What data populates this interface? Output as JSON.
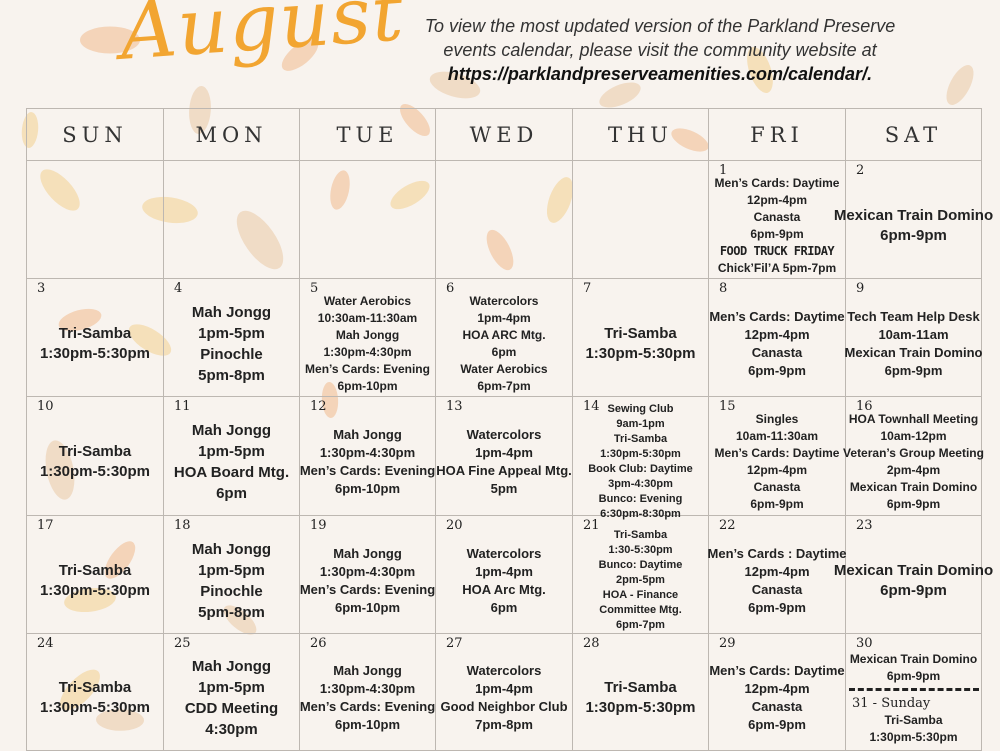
{
  "header": {
    "month": "August",
    "notice_line1": "To view the most updated version of the Parkland Preserve",
    "notice_line2": "events calendar, please visit the community website at",
    "notice_url": "https://parklandpreserveamenities.com/calendar/."
  },
  "colors": {
    "accent": "#f2a531",
    "background": "#f8f3ee",
    "grid": "#bdb7b1",
    "leaf": "#f3c48a"
  },
  "weekdays": [
    "SUN",
    "MON",
    "TUE",
    "WED",
    "THU",
    "FRI",
    "SAT"
  ],
  "cells": [
    {
      "day": "",
      "events": []
    },
    {
      "day": "",
      "events": []
    },
    {
      "day": "",
      "events": []
    },
    {
      "day": "",
      "events": []
    },
    {
      "day": "",
      "events": []
    },
    {
      "day": "1",
      "events": [
        "Men’s Cards: Daytime",
        "12pm-4pm",
        "Canasta",
        "6pm-9pm",
        {
          "banner": "FOOD TRUCK FRIDAY"
        },
        "Chick’Fil’A 5pm-7pm"
      ]
    },
    {
      "day": "2",
      "events": [
        "Mexican Train Domino",
        "6pm-9pm"
      ]
    },
    {
      "day": "3",
      "events": [
        "Tri-Samba",
        "1:30pm-5:30pm"
      ]
    },
    {
      "day": "4",
      "events": [
        "Mah Jongg",
        "1pm-5pm",
        "Pinochle",
        "5pm-8pm"
      ]
    },
    {
      "day": "5",
      "events": [
        "Water Aerobics",
        "10:30am-11:30am",
        "Mah Jongg",
        "1:30pm-4:30pm",
        "Men’s Cards: Evening",
        "6pm-10pm"
      ]
    },
    {
      "day": "6",
      "events": [
        "Watercolors",
        "1pm-4pm",
        "HOA ARC Mtg.",
        "6pm",
        "Water Aerobics",
        "6pm-7pm"
      ]
    },
    {
      "day": "7",
      "events": [
        "Tri-Samba",
        "1:30pm-5:30pm"
      ]
    },
    {
      "day": "8",
      "events": [
        "Men’s Cards: Daytime",
        "12pm-4pm",
        "Canasta",
        "6pm-9pm"
      ]
    },
    {
      "day": "9",
      "events": [
        "Tech Team Help Desk",
        "10am-11am",
        "Mexican Train Domino",
        "6pm-9pm"
      ]
    },
    {
      "day": "10",
      "events": [
        "Tri-Samba",
        "1:30pm-5:30pm"
      ]
    },
    {
      "day": "11",
      "events": [
        "Mah Jongg",
        "1pm-5pm",
        "HOA Board Mtg.",
        "6pm"
      ]
    },
    {
      "day": "12",
      "events": [
        "Mah Jongg",
        "1:30pm-4:30pm",
        "Men’s Cards: Evening",
        "6pm-10pm"
      ]
    },
    {
      "day": "13",
      "events": [
        "Watercolors",
        "1pm-4pm",
        "HOA Fine Appeal Mtg.",
        "5pm"
      ]
    },
    {
      "day": "14",
      "events": [
        "Sewing Club",
        "9am-1pm",
        "Tri-Samba",
        "1:30pm-5:30pm",
        "Book Club: Daytime",
        "3pm-4:30pm",
        "Bunco: Evening",
        "6:30pm-8:30pm"
      ]
    },
    {
      "day": "15",
      "events": [
        "Singles",
        "10am-11:30am",
        "Men’s Cards: Daytime",
        "12pm-4pm",
        "Canasta",
        "6pm-9pm"
      ]
    },
    {
      "day": "16",
      "events": [
        "HOA Townhall Meeting",
        "10am-12pm",
        "Veteran’s Group Meeting",
        "2pm-4pm",
        "Mexican Train Domino",
        "6pm-9pm"
      ]
    },
    {
      "day": "17",
      "events": [
        "Tri-Samba",
        "1:30pm-5:30pm"
      ]
    },
    {
      "day": "18",
      "events": [
        "Mah Jongg",
        "1pm-5pm",
        "Pinochle",
        "5pm-8pm"
      ]
    },
    {
      "day": "19",
      "events": [
        "Mah Jongg",
        "1:30pm-4:30pm",
        "Men’s Cards: Evening",
        "6pm-10pm"
      ]
    },
    {
      "day": "20",
      "events": [
        "Watercolors",
        "1pm-4pm",
        "HOA Arc Mtg.",
        "6pm"
      ]
    },
    {
      "day": "21",
      "events": [
        "Tri-Samba",
        "1:30-5:30pm",
        "Bunco: Daytime",
        "2pm-5pm",
        "HOA - Finance",
        "Committee Mtg.",
        "6pm-7pm"
      ]
    },
    {
      "day": "22",
      "events": [
        "Men’s Cards : Daytime",
        "12pm-4pm",
        "Canasta",
        "6pm-9pm"
      ]
    },
    {
      "day": "23",
      "events": [
        "Mexican Train Domino",
        "6pm-9pm"
      ]
    },
    {
      "day": "24",
      "events": [
        "Tri-Samba",
        "1:30pm-5:30pm"
      ]
    },
    {
      "day": "25",
      "events": [
        "Mah Jongg",
        "1pm-5pm",
        "CDD Meeting",
        "4:30pm"
      ]
    },
    {
      "day": "26",
      "events": [
        "Mah Jongg",
        "1:30pm-4:30pm",
        "Men’s Cards: Evening",
        "6pm-10pm"
      ]
    },
    {
      "day": "27",
      "events": [
        "Watercolors",
        "1pm-4pm",
        "Good Neighbor Club",
        "7pm-8pm"
      ]
    },
    {
      "day": "28",
      "events": [
        "Tri-Samba",
        "1:30pm-5:30pm"
      ]
    },
    {
      "day": "29",
      "events": [
        "Men’s Cards: Daytime",
        "12pm-4pm",
        "Canasta",
        "6pm-9pm"
      ]
    },
    {
      "day": "30",
      "events": [
        "Mexican Train Domino",
        "6pm-9pm",
        {
          "divider": true
        },
        {
          "subday": "31 - Sunday"
        },
        "Tri-Samba",
        "1:30pm-5:30pm"
      ]
    }
  ]
}
